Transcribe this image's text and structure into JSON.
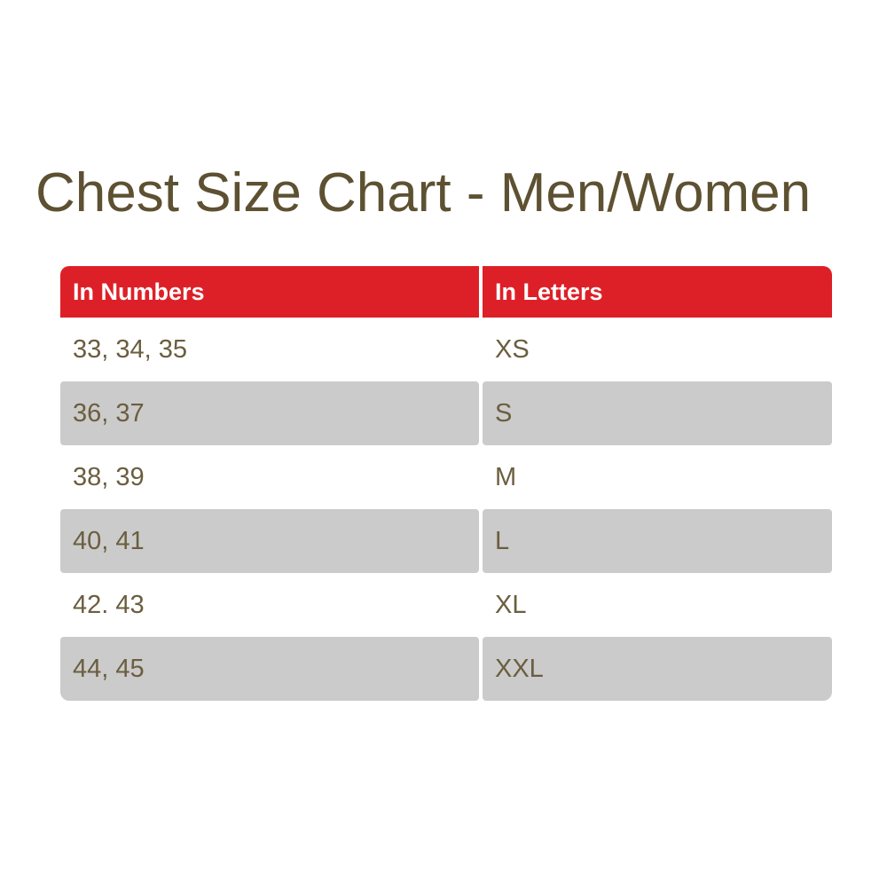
{
  "page": {
    "title": "Chest Size Chart - Men/Women"
  },
  "chart_data": {
    "type": "table",
    "title": "Chest Size Chart - Men/Women",
    "columns": [
      "In Numbers",
      "In Letters"
    ],
    "rows": [
      [
        "33, 34, 35",
        "XS"
      ],
      [
        "36, 37",
        "S"
      ],
      [
        "38, 39",
        "M"
      ],
      [
        "40, 41",
        "L"
      ],
      [
        "42. 43",
        "XL"
      ],
      [
        "44, 45",
        "XXL"
      ]
    ]
  },
  "colors": {
    "header_bg": "#dd2027",
    "header_text": "#ffffff",
    "row_bg": "#ffffff",
    "row_alt_bg": "#cbcbcb",
    "cell_text": "#6b5e3f",
    "title_text": "#5d5132",
    "background": "#ffffff"
  }
}
